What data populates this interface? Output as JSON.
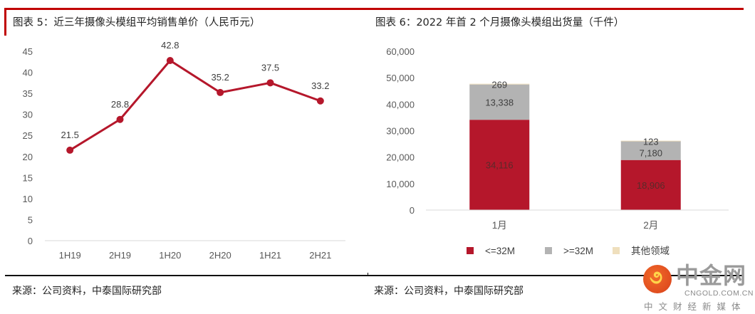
{
  "figure_left": {
    "title": "图表 5：近三年摄像头模组平均销售单价（人民币元）",
    "source": "来源：公司资料，中泰国际研究部"
  },
  "figure_right": {
    "title": "图表 6：2022 年首 2 个月摄像头模组出货量（千件）",
    "source": "来源：公司资料，中泰国际研究部"
  },
  "watermark": {
    "name": "中金网",
    "domain": "CNGOLD.COM.CN",
    "tagline": "中文财经新媒体",
    "color": "#e8541e"
  },
  "chart_data": [
    {
      "type": "line",
      "title": "近三年摄像头模组平均销售单价（人民币元）",
      "xlabel": "",
      "ylabel": "",
      "categories": [
        "1H19",
        "2H19",
        "1H20",
        "2H20",
        "1H21",
        "2H21"
      ],
      "series": [
        {
          "name": "平均销售单价",
          "values": [
            21.5,
            28.8,
            42.8,
            35.2,
            37.5,
            33.2
          ],
          "color": "#b5172b"
        }
      ],
      "data_labels": [
        "21.5",
        "28.8",
        "42.8",
        "35.2",
        "37.5",
        "33.2"
      ],
      "ylim": [
        0,
        45
      ],
      "yticks": [
        0,
        5,
        10,
        15,
        20,
        25,
        30,
        35,
        40,
        45
      ],
      "ytick_labels": [
        "0",
        "5",
        "10",
        "15",
        "20",
        "25",
        "30",
        "35",
        "40",
        "45"
      ],
      "grid": false,
      "legend": "none"
    },
    {
      "type": "bar",
      "stacked": true,
      "title": "2022 年首 2 个月摄像头模组出货量（千件）",
      "xlabel": "",
      "ylabel": "",
      "categories": [
        "1月",
        "2月"
      ],
      "series": [
        {
          "name": "<=32M",
          "values": [
            34116,
            18906
          ],
          "labels": [
            "34,116",
            "18,906"
          ],
          "color": "#b5172b"
        },
        {
          "name": ">=32M",
          "values": [
            13338,
            7180
          ],
          "labels": [
            "13,338",
            "7,180"
          ],
          "color": "#b3b3b3"
        },
        {
          "name": "其他领域",
          "values": [
            269,
            123
          ],
          "labels": [
            "269",
            "123"
          ],
          "color": "#efdfbd"
        }
      ],
      "ylim": [
        0,
        60000
      ],
      "yticks": [
        0,
        10000,
        20000,
        30000,
        40000,
        50000,
        60000
      ],
      "ytick_labels": [
        "0",
        "10,000",
        "20,000",
        "30,000",
        "40,000",
        "50,000",
        "60,000"
      ],
      "grid": false,
      "legend": "bottom"
    }
  ]
}
